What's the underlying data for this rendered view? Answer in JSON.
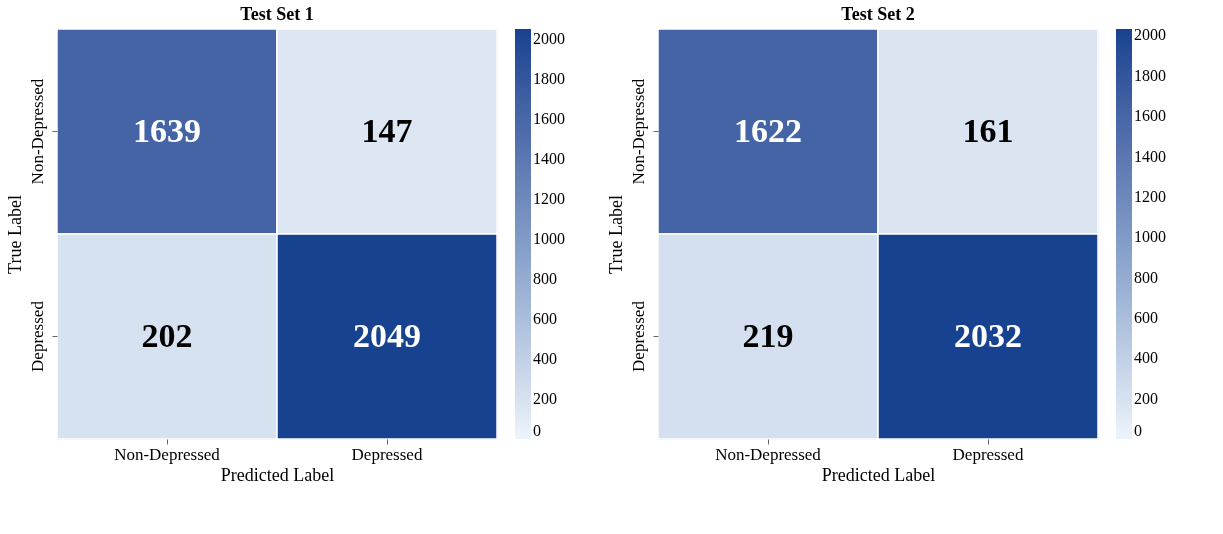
{
  "chart_data": [
    {
      "type": "heatmap",
      "title": "Test Set 1",
      "xlabel": "Predicted Label",
      "ylabel": "True Label",
      "categories": [
        "Non-Depressed",
        "Depressed"
      ],
      "y_categories": [
        "Non-Depressed",
        "Depressed"
      ],
      "cells": [
        [
          1639,
          147
        ],
        [
          202,
          2049
        ]
      ],
      "clim": [
        0,
        2049
      ],
      "cticks": [
        0,
        200,
        400,
        600,
        800,
        1000,
        1200,
        1400,
        1600,
        1800,
        2000
      ],
      "data_labels": true
    },
    {
      "type": "heatmap",
      "title": "Test Set 2",
      "xlabel": "Predicted Label",
      "ylabel": "True Label",
      "categories": [
        "Non-Depressed",
        "Depressed"
      ],
      "y_categories": [
        "Non-Depressed",
        "Depressed"
      ],
      "cells": [
        [
          1622,
          161
        ],
        [
          219,
          2032
        ]
      ],
      "clim": [
        0,
        2032
      ],
      "cticks": [
        0,
        200,
        400,
        600,
        800,
        1000,
        1200,
        1400,
        1600,
        1800,
        2000
      ],
      "data_labels": true
    }
  ]
}
